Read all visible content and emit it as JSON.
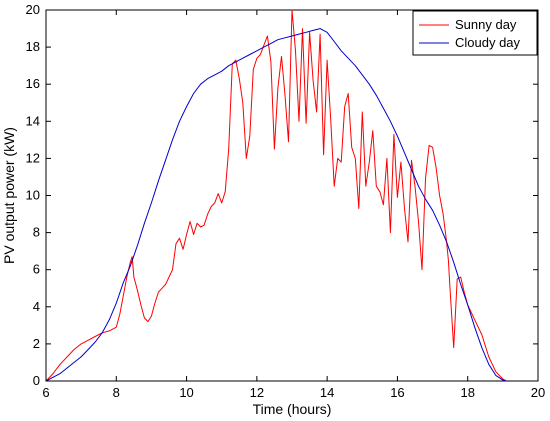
{
  "chart_data": {
    "type": "line",
    "title": "",
    "xlabel": "Time (hours)",
    "ylabel": "PV output power (kW)",
    "xlim": [
      6,
      20
    ],
    "ylim": [
      0,
      20
    ],
    "xticks": [
      6,
      8,
      10,
      12,
      14,
      16,
      18,
      20
    ],
    "yticks": [
      0,
      2,
      4,
      6,
      8,
      10,
      12,
      14,
      16,
      18,
      20
    ],
    "grid": false,
    "legend_position": "top-right",
    "series": [
      {
        "name": "Sunny day",
        "color": "#ff0000",
        "x": [
          6.0,
          6.2,
          6.4,
          6.6,
          6.8,
          7.0,
          7.2,
          7.4,
          7.6,
          7.8,
          8.0,
          8.1,
          8.2,
          8.3,
          8.4,
          8.45,
          8.5,
          8.6,
          8.7,
          8.8,
          8.9,
          9.0,
          9.1,
          9.2,
          9.3,
          9.4,
          9.5,
          9.6,
          9.7,
          9.8,
          9.9,
          10.0,
          10.1,
          10.2,
          10.3,
          10.4,
          10.5,
          10.6,
          10.7,
          10.8,
          10.9,
          11.0,
          11.1,
          11.2,
          11.3,
          11.4,
          11.5,
          11.6,
          11.7,
          11.8,
          11.9,
          12.0,
          12.1,
          12.2,
          12.3,
          12.4,
          12.5,
          12.6,
          12.7,
          12.8,
          12.9,
          13.0,
          13.1,
          13.2,
          13.3,
          13.4,
          13.5,
          13.6,
          13.7,
          13.8,
          13.9,
          14.0,
          14.1,
          14.2,
          14.3,
          14.4,
          14.5,
          14.6,
          14.7,
          14.8,
          14.9,
          15.0,
          15.1,
          15.2,
          15.3,
          15.4,
          15.5,
          15.6,
          15.7,
          15.8,
          15.9,
          16.0,
          16.1,
          16.2,
          16.3,
          16.4,
          16.5,
          16.6,
          16.7,
          16.8,
          16.9,
          17.0,
          17.1,
          17.2,
          17.3,
          17.4,
          17.45,
          17.5,
          17.6,
          17.7,
          17.8,
          17.9,
          18.0,
          18.2,
          18.4,
          18.6,
          18.8,
          19.0,
          19.1
        ],
        "y": [
          0.0,
          0.4,
          0.9,
          1.3,
          1.7,
          2.0,
          2.2,
          2.4,
          2.6,
          2.7,
          2.9,
          3.6,
          4.6,
          5.6,
          6.4,
          6.7,
          5.6,
          4.9,
          4.1,
          3.4,
          3.2,
          3.5,
          4.2,
          4.8,
          5.0,
          5.2,
          5.6,
          6.0,
          7.4,
          7.7,
          7.1,
          7.9,
          8.6,
          7.9,
          8.5,
          8.3,
          8.4,
          9.0,
          9.4,
          9.6,
          10.1,
          9.6,
          10.2,
          12.5,
          17.1,
          17.3,
          16.3,
          15.0,
          12.0,
          13.2,
          16.8,
          17.4,
          17.6,
          18.1,
          18.6,
          17.2,
          12.5,
          15.8,
          17.5,
          15.4,
          12.9,
          20.0,
          17.8,
          14.0,
          19.0,
          13.9,
          18.8,
          16.2,
          14.5,
          18.7,
          12.2,
          17.3,
          14.1,
          10.5,
          12.0,
          11.8,
          14.8,
          15.5,
          12.6,
          12.0,
          9.3,
          14.5,
          10.5,
          11.8,
          13.5,
          10.5,
          10.2,
          9.5,
          12.0,
          8.0,
          13.3,
          9.9,
          11.8,
          9.3,
          7.5,
          11.9,
          10.5,
          8.6,
          6.0,
          10.9,
          12.7,
          12.6,
          11.5,
          10.0,
          9.0,
          7.5,
          6.5,
          4.9,
          1.8,
          5.5,
          5.6,
          4.8,
          4.1,
          3.3,
          2.5,
          1.3,
          0.5,
          0.1,
          0.0
        ],
        "y_cloudy_unused": []
      },
      {
        "name": "Cloudy day",
        "color": "#0000cc",
        "x": [
          6.0,
          6.2,
          6.4,
          6.6,
          6.8,
          7.0,
          7.2,
          7.4,
          7.6,
          7.8,
          8.0,
          8.2,
          8.4,
          8.6,
          8.8,
          9.0,
          9.2,
          9.4,
          9.6,
          9.8,
          10.0,
          10.2,
          10.4,
          10.6,
          10.8,
          11.0,
          11.2,
          11.4,
          11.6,
          11.8,
          12.0,
          12.2,
          12.4,
          12.6,
          12.8,
          13.0,
          13.2,
          13.4,
          13.6,
          13.8,
          14.0,
          14.2,
          14.4,
          14.6,
          14.8,
          15.0,
          15.2,
          15.4,
          15.6,
          15.8,
          16.0,
          16.2,
          16.4,
          16.6,
          16.8,
          17.0,
          17.2,
          17.4,
          17.6,
          17.8,
          18.0,
          18.2,
          18.4,
          18.6,
          18.8,
          19.0,
          19.1
        ],
        "y": [
          0.0,
          0.2,
          0.4,
          0.7,
          1.0,
          1.3,
          1.7,
          2.1,
          2.6,
          3.3,
          4.2,
          5.3,
          6.2,
          7.3,
          8.5,
          9.6,
          10.8,
          11.9,
          13.0,
          14.0,
          14.8,
          15.5,
          16.0,
          16.3,
          16.5,
          16.7,
          17.0,
          17.2,
          17.4,
          17.6,
          17.8,
          18.0,
          18.2,
          18.4,
          18.5,
          18.6,
          18.7,
          18.8,
          18.9,
          19.0,
          18.8,
          18.3,
          17.8,
          17.4,
          17.0,
          16.5,
          16.0,
          15.4,
          14.7,
          14.0,
          13.2,
          12.3,
          11.4,
          10.5,
          9.8,
          9.2,
          8.4,
          7.5,
          6.4,
          5.2,
          4.1,
          2.9,
          1.8,
          0.9,
          0.3,
          0.05,
          0.0
        ]
      }
    ]
  }
}
